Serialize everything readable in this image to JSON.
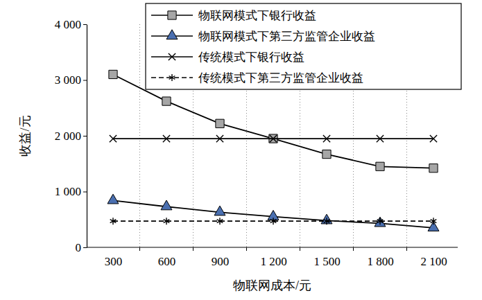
{
  "chart_data": {
    "type": "line",
    "x_label": "物联网成本/元",
    "y_label": "收益/元",
    "categories": [
      "300",
      "600",
      "900",
      "1 200",
      "1 500",
      "1 800",
      "2 100"
    ],
    "series": [
      {
        "name": "物联网模式下银行收益",
        "color": "#a6a6a6",
        "marker": "square",
        "line_style": "solid",
        "values": [
          3100,
          2620,
          2220,
          1950,
          1670,
          1450,
          1420
        ]
      },
      {
        "name": "物联网模式下第三方监管企业收益",
        "color": "#4a6fb0",
        "marker": "triangle",
        "line_style": "solid",
        "values": [
          840,
          730,
          630,
          550,
          480,
          430,
          350
        ]
      },
      {
        "name": "传统模式下银行收益",
        "color": "#000000",
        "marker": "x",
        "line_style": "solid",
        "values": [
          1950,
          1950,
          1950,
          1950,
          1950,
          1950,
          1950
        ]
      },
      {
        "name": "传统模式下第三方监管企业收益",
        "color": "#000000",
        "marker": "star",
        "line_style": "dashed",
        "values": [
          470,
          470,
          470,
          470,
          470,
          470,
          470
        ]
      }
    ],
    "ylim": [
      0,
      4000
    ],
    "yticks": [
      0,
      {
        "value": 1000,
        "label": "1 000"
      },
      {
        "value": 2000,
        "label": "2 000"
      },
      {
        "value": 3000,
        "label": "3 000"
      },
      {
        "value": 4000,
        "label": "4 000"
      }
    ],
    "grid": true,
    "legend": "upper right"
  }
}
